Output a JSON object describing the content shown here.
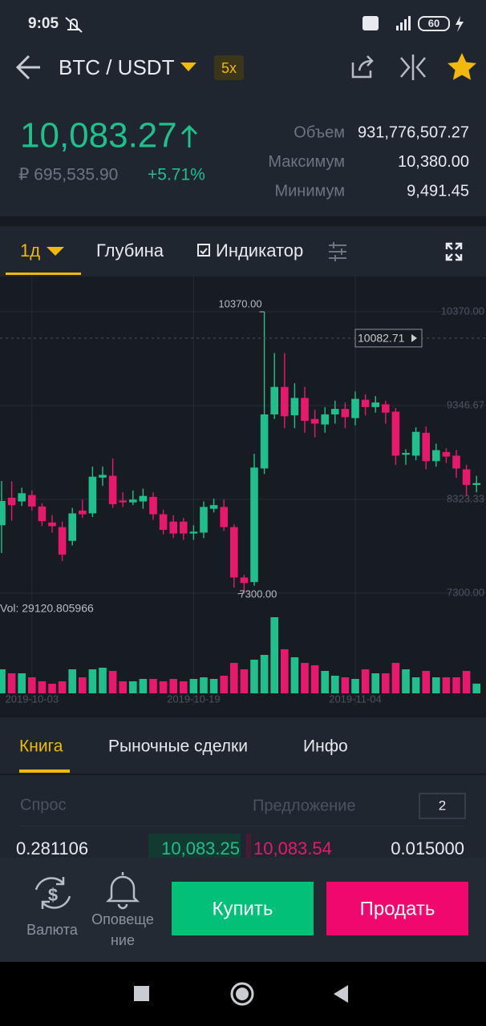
{
  "status_bar": {
    "time": "9:05",
    "battery": "60"
  },
  "header": {
    "pair": "BTC / USDT",
    "leverage": "5x"
  },
  "ticker": {
    "price": "10,083.27",
    "price_rub": "₽ 695,535.90",
    "change": "+5.71%",
    "stats": [
      {
        "label": "Объем",
        "value": "931,776,507.27"
      },
      {
        "label": "Максимум",
        "value": "10,380.00"
      },
      {
        "label": "Минимум",
        "value": "9,491.45"
      }
    ]
  },
  "chart_tabs": {
    "interval": "1д",
    "depth": "Глубина",
    "indicator": "Индикатор"
  },
  "chart_data": {
    "type": "candlestick",
    "categories": [
      null,
      null,
      null,
      "2019-10-03",
      null,
      null,
      null,
      null,
      null,
      null,
      null,
      null,
      null,
      null,
      null,
      null,
      null,
      null,
      null,
      "2019-10-19",
      null,
      null,
      null,
      null,
      null,
      null,
      null,
      null,
      null,
      null,
      null,
      null,
      null,
      null,
      null,
      "2019-11-04",
      null,
      null,
      null,
      null,
      null,
      null,
      null,
      null,
      null,
      null,
      null,
      null
    ],
    "open": [
      8040,
      8340,
      8300,
      8370,
      8245,
      8070,
      8020,
      7870,
      8200,
      8170,
      8560,
      8580,
      8310,
      8290,
      8300,
      8350,
      8160,
      8080,
      8080,
      7950,
      7960,
      8220,
      8240,
      8020,
      7470,
      7420,
      8660,
      9250,
      9550,
      9240,
      9430,
      9200,
      9140,
      9250,
      9310,
      9210,
      9410,
      9330,
      9360,
      9280,
      8810,
      8800,
      9050,
      8740,
      8840,
      8800,
      8650,
      8480
    ],
    "high": [
      8524,
      8520,
      8450,
      8420,
      8280,
      8150,
      8080,
      8230,
      8320,
      8680,
      8680,
      8770,
      8400,
      8420,
      8440,
      8400,
      8210,
      8150,
      8120,
      8040,
      8300,
      8330,
      8320,
      8050,
      7500,
      8820,
      10370,
      9920,
      9920,
      9590,
      9550,
      9300,
      9330,
      9400,
      9380,
      9500,
      9470,
      9450,
      9400,
      9320,
      8870,
      9110,
      9120,
      8930,
      8880,
      8860,
      8700,
      8580
    ],
    "low": [
      7736,
      8090,
      8250,
      8200,
      8030,
      7960,
      7650,
      7820,
      8120,
      8130,
      8470,
      8230,
      8240,
      8260,
      8220,
      8100,
      7940,
      7900,
      7880,
      7880,
      7900,
      8180,
      7980,
      7360,
      7300,
      7380,
      8600,
      9200,
      9100,
      9100,
      9050,
      9000,
      9050,
      9150,
      9100,
      9130,
      9240,
      9270,
      9150,
      8700,
      8700,
      8750,
      8650,
      8680,
      8720,
      8560,
      8360,
      8400
    ],
    "close": [
      8305,
      8260,
      8390,
      8245,
      8085,
      8030,
      7720,
      8170,
      8160,
      8570,
      8590,
      8270,
      8290,
      8320,
      8360,
      8160,
      7990,
      7950,
      7950,
      7970,
      8240,
      8260,
      8020,
      7470,
      7410,
      8670,
      9250,
      9550,
      9230,
      9430,
      9180,
      9150,
      9250,
      9310,
      9220,
      9420,
      9330,
      9380,
      9270,
      8800,
      8830,
      9060,
      8740,
      8860,
      8790,
      8660,
      8480,
      8500
    ],
    "volume": [
      72000,
      60000,
      60000,
      48000,
      36000,
      28800,
      36000,
      72000,
      48000,
      72000,
      76800,
      67200,
      36000,
      36000,
      43200,
      43200,
      36000,
      43200,
      36000,
      43200,
      48000,
      43200,
      52800,
      91200,
      72000,
      100800,
      115200,
      228000,
      132000,
      108000,
      91200,
      84000,
      67200,
      52800,
      48000,
      43200,
      72000,
      60000,
      60000,
      91200,
      72000,
      48000,
      67200,
      48000,
      48000,
      48000,
      67200,
      29120.805966
    ],
    "volume_label": "Vol: 29120.805966",
    "up_color": "#1fc08c",
    "down_color": "#e8196c",
    "ylim": [
      7124,
      10755
    ],
    "yticks": [
      {
        "value": 10370,
        "label": "10370.00"
      },
      {
        "value": 9346.67,
        "label": "9346.67"
      },
      {
        "value": 8323.33,
        "label": "8323.33"
      },
      {
        "value": 7300,
        "label": "7300.00"
      }
    ],
    "high_marker": {
      "value": 10370,
      "label": "10370.00"
    },
    "low_marker": {
      "value": 7300,
      "label": "7300.00"
    },
    "last_price": {
      "value": 10082.71,
      "label": "10082.71"
    },
    "grid": true
  },
  "book_tabs": [
    "Книга",
    "Рыночные сделки",
    "Инфо"
  ],
  "order_book": {
    "bid_header": "Спрос",
    "ask_header": "Предложение",
    "precision": "2",
    "rows": [
      [
        "0.281106",
        "10,083.25",
        "10,083.54",
        "0.015000"
      ]
    ]
  },
  "actions": {
    "currency": "Валюта",
    "alerts": [
      "Оповеще",
      "ние"
    ],
    "buy": "Купить",
    "sell": "Продать"
  }
}
